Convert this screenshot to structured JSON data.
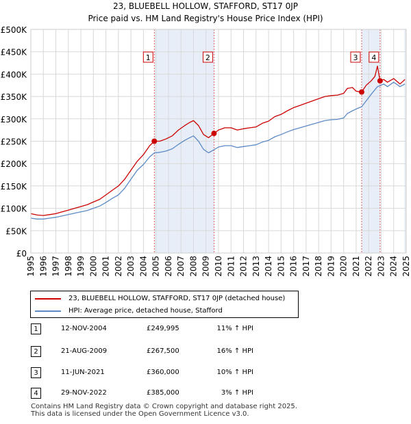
{
  "colors": {
    "property": "#cc0000",
    "hpi": "#5b8ac6",
    "shade": "#e8eef8",
    "vline": "#e06060",
    "grid": "#d8d8d8"
  },
  "chart_data": {
    "type": "line",
    "title": "23, BLUEBELL HOLLOW, STAFFORD, ST17 0JP",
    "subtitle": "Price paid vs. HM Land Registry's House Price Index (HPI)",
    "xlim": [
      1995,
      2025
    ],
    "ylim": [
      0,
      500000
    ],
    "y_ticks": [
      0,
      50000,
      100000,
      150000,
      200000,
      250000,
      300000,
      350000,
      400000,
      450000,
      500000
    ],
    "y_tick_labels": [
      "£0",
      "£50K",
      "£100K",
      "£150K",
      "£200K",
      "£250K",
      "£300K",
      "£350K",
      "£400K",
      "£450K",
      "£500K"
    ],
    "x_ticks": [
      1995,
      1996,
      1997,
      1998,
      1999,
      2000,
      2001,
      2002,
      2003,
      2004,
      2005,
      2006,
      2007,
      2008,
      2009,
      2010,
      2011,
      2012,
      2013,
      2014,
      2015,
      2016,
      2017,
      2018,
      2019,
      2020,
      2021,
      2022,
      2023,
      2024,
      2025
    ],
    "x_tick_labels": [
      "1995",
      "1996",
      "1997",
      "1998",
      "1999",
      "2000",
      "2001",
      "2002",
      "2003",
      "2004",
      "2005",
      "2006",
      "2007",
      "2008",
      "2009",
      "2010",
      "2011",
      "2012",
      "2013",
      "2014",
      "2015",
      "2016",
      "2017",
      "2018",
      "2019",
      "2020",
      "2021",
      "2022",
      "2023",
      "2024",
      "2025"
    ],
    "series": [
      {
        "name": "23, BLUEBELL HOLLOW, STAFFORD, ST17 0JP (detached house)",
        "color": "#cc0000",
        "x": [
          1995.0,
          1995.5,
          1996.0,
          1996.5,
          1997.0,
          1997.5,
          1998.0,
          1998.5,
          1999.0,
          1999.5,
          2000.0,
          2000.5,
          2001.0,
          2001.5,
          2002.0,
          2002.5,
          2003.0,
          2003.5,
          2004.0,
          2004.5,
          2004.87,
          2005.3,
          2005.8,
          2006.3,
          2006.8,
          2007.3,
          2007.7,
          2008.0,
          2008.4,
          2008.8,
          2009.2,
          2009.64,
          2010.0,
          2010.5,
          2011.0,
          2011.5,
          2012.0,
          2012.5,
          2013.0,
          2013.5,
          2014.0,
          2014.5,
          2015.0,
          2015.5,
          2016.0,
          2016.5,
          2017.0,
          2017.5,
          2018.0,
          2018.5,
          2019.0,
          2019.5,
          2020.0,
          2020.3,
          2020.7,
          2021.0,
          2021.44,
          2021.8,
          2022.2,
          2022.5,
          2022.7,
          2022.91,
          2023.2,
          2023.5,
          2024.0,
          2024.5,
          2024.9
        ],
        "values": [
          88000,
          85000,
          84000,
          86000,
          88000,
          92000,
          96000,
          100000,
          104000,
          108000,
          114000,
          120000,
          130000,
          140000,
          150000,
          165000,
          185000,
          205000,
          220000,
          240000,
          249995,
          250000,
          255000,
          262000,
          275000,
          285000,
          292000,
          296000,
          285000,
          265000,
          258000,
          267500,
          275000,
          280000,
          280000,
          275000,
          278000,
          280000,
          282000,
          290000,
          295000,
          305000,
          310000,
          318000,
          325000,
          330000,
          335000,
          340000,
          345000,
          350000,
          352000,
          353000,
          357000,
          368000,
          370000,
          362000,
          360000,
          375000,
          385000,
          395000,
          418000,
          385000,
          388000,
          382000,
          390000,
          378000,
          388000
        ]
      },
      {
        "name": "HPI: Average price, detached house, Stafford",
        "color": "#5b8ac6",
        "x": [
          1995.0,
          1995.5,
          1996.0,
          1996.5,
          1997.0,
          1997.5,
          1998.0,
          1998.5,
          1999.0,
          1999.5,
          2000.0,
          2000.5,
          2001.0,
          2001.5,
          2002.0,
          2002.5,
          2003.0,
          2003.5,
          2004.0,
          2004.5,
          2004.87,
          2005.3,
          2005.8,
          2006.3,
          2006.8,
          2007.3,
          2007.7,
          2008.0,
          2008.4,
          2008.8,
          2009.2,
          2009.64,
          2010.0,
          2010.5,
          2011.0,
          2011.5,
          2012.0,
          2012.5,
          2013.0,
          2013.5,
          2014.0,
          2014.5,
          2015.0,
          2015.5,
          2016.0,
          2016.5,
          2017.0,
          2017.5,
          2018.0,
          2018.5,
          2019.0,
          2019.5,
          2020.0,
          2020.3,
          2020.7,
          2021.0,
          2021.44,
          2021.8,
          2022.2,
          2022.5,
          2022.7,
          2022.91,
          2023.2,
          2023.5,
          2024.0,
          2024.5,
          2024.9
        ],
        "values": [
          78000,
          76000,
          76000,
          78000,
          80000,
          83000,
          86000,
          89000,
          92000,
          95000,
          100000,
          105000,
          113000,
          122000,
          130000,
          145000,
          165000,
          185000,
          198000,
          215000,
          224000,
          225000,
          228000,
          233000,
          243000,
          252000,
          258000,
          262000,
          250000,
          232000,
          224000,
          231000,
          237000,
          240000,
          240000,
          236000,
          238000,
          240000,
          242000,
          248000,
          252000,
          260000,
          265000,
          271000,
          276000,
          280000,
          284000,
          288000,
          292000,
          296000,
          298000,
          299000,
          302000,
          312000,
          318000,
          322000,
          327000,
          340000,
          355000,
          365000,
          372000,
          374000,
          378000,
          372000,
          382000,
          372000,
          378000
        ]
      }
    ],
    "annotations": [
      {
        "label": "1",
        "x": 2004.87,
        "price": 249995
      },
      {
        "label": "2",
        "x": 2009.64,
        "price": 267500
      },
      {
        "label": "3",
        "x": 2021.44,
        "price": 360000
      },
      {
        "label": "4",
        "x": 2022.91,
        "price": 385000
      }
    ],
    "shaded_ranges": [
      [
        2004.87,
        2009.64
      ],
      [
        2021.44,
        2022.91
      ],
      [
        2024.85,
        2025.0
      ]
    ]
  },
  "legend": {
    "property_label": "23, BLUEBELL HOLLOW, STAFFORD, ST17 0JP (detached house)",
    "hpi_label": "HPI: Average price, detached house, Stafford"
  },
  "transactions": [
    {
      "num": "1",
      "date": "12-NOV-2004",
      "price": "£249,995",
      "hpi": "11% ↑ HPI"
    },
    {
      "num": "2",
      "date": "21-AUG-2009",
      "price": "£267,500",
      "hpi": "16% ↑ HPI"
    },
    {
      "num": "3",
      "date": "11-JUN-2021",
      "price": "£360,000",
      "hpi": "10% ↑ HPI"
    },
    {
      "num": "4",
      "date": "29-NOV-2022",
      "price": "£385,000",
      "hpi": "3% ↑ HPI"
    }
  ],
  "footer": {
    "line1": "Contains HM Land Registry data © Crown copyright and database right 2025.",
    "line2": "This data is licensed under the Open Government Licence v3.0."
  }
}
